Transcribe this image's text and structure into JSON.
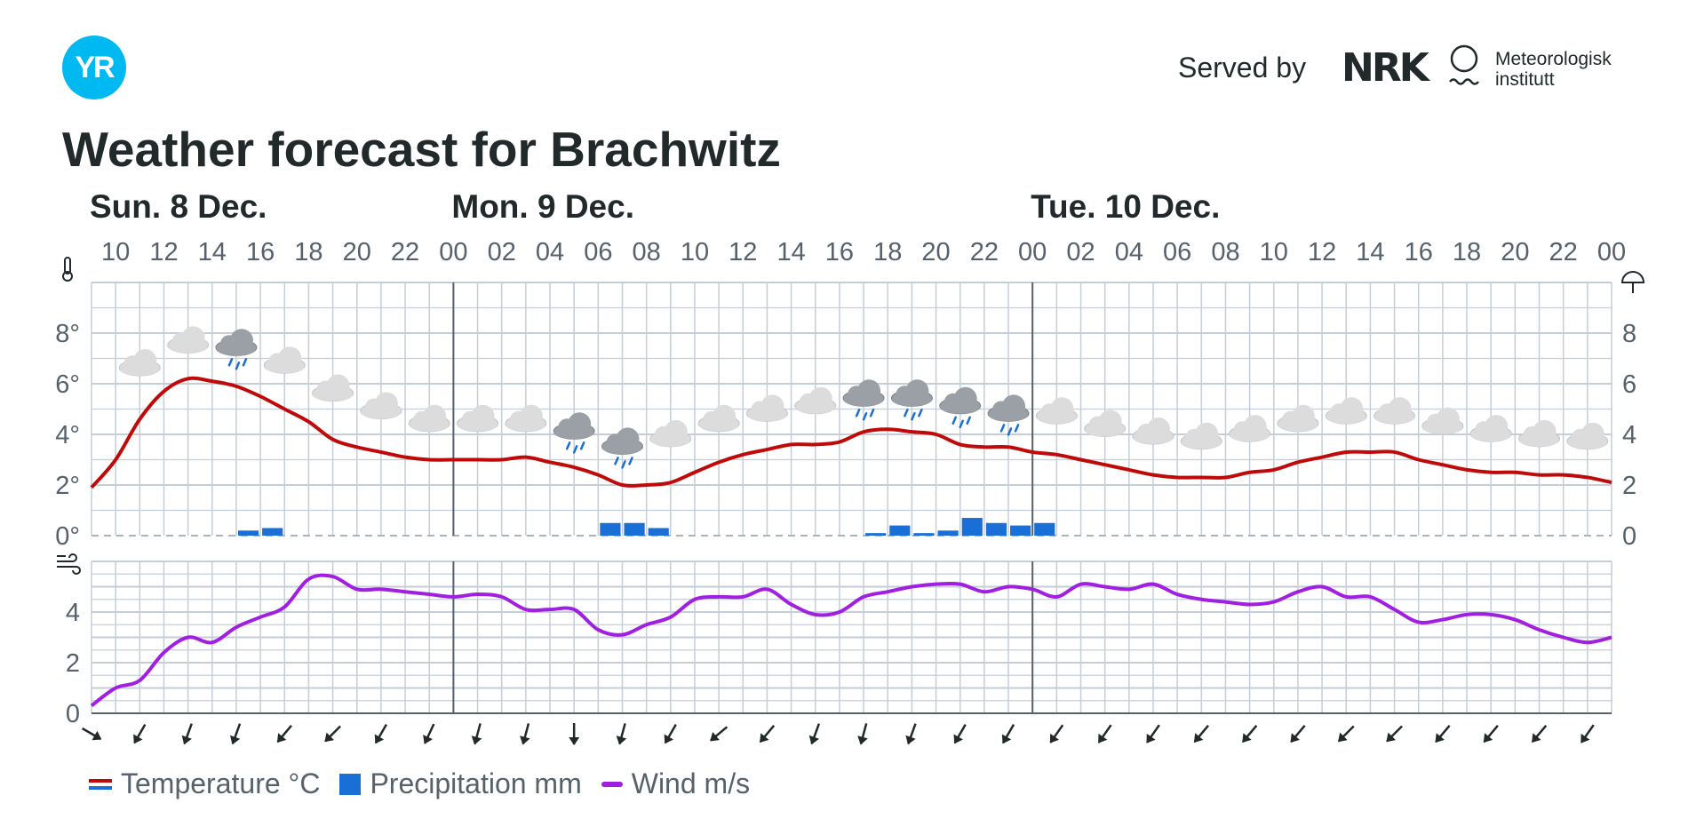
{
  "header": {
    "served_by": "Served by",
    "nrk_logo_text": "NRK",
    "met_line1": "Meteorologisk",
    "met_line2": "institutt",
    "logo_text": "YR"
  },
  "title": "Weather forecast for Brachwitz",
  "days": [
    {
      "label": "Sun. 8 Dec.",
      "hour": 9
    },
    {
      "label": "Mon. 9 Dec.",
      "hour": 24
    },
    {
      "label": "Tue. 10 Dec.",
      "hour": 48
    }
  ],
  "legend": {
    "temperature": "Temperature °C",
    "precipitation": "Precipitation mm",
    "wind": "Wind m/s"
  },
  "colors": {
    "temperature": "#c00a0a",
    "precipitation": "#1a6fd6",
    "wind": "#a01fe0",
    "grid": "#c5ced8",
    "day_line": "#56616c"
  },
  "chart_data": {
    "type": "line",
    "x_unit": "hours from Sun. 8 Dec. 00:00",
    "xlim": [
      9,
      72
    ],
    "x_tick_labels": [
      "10",
      "12",
      "14",
      "16",
      "18",
      "20",
      "22",
      "00",
      "02",
      "04",
      "06",
      "08",
      "10",
      "12",
      "14",
      "16",
      "18",
      "20",
      "22",
      "00",
      "02",
      "04",
      "06",
      "08",
      "10",
      "12",
      "14",
      "16",
      "18",
      "20",
      "22",
      "00"
    ],
    "x_tick_hours": [
      10,
      12,
      14,
      16,
      18,
      20,
      22,
      24,
      26,
      28,
      30,
      32,
      34,
      36,
      38,
      40,
      42,
      44,
      46,
      48,
      50,
      52,
      54,
      56,
      58,
      60,
      62,
      64,
      66,
      68,
      70,
      72
    ],
    "temperature": {
      "ylim": [
        0,
        10
      ],
      "y_tick_labels": [
        "0°",
        "2°",
        "4°",
        "6°",
        "8°"
      ],
      "y_tick_values": [
        0,
        2,
        4,
        6,
        8
      ],
      "right_tick_labels": [
        "0",
        "2",
        "4",
        "6",
        "8"
      ],
      "x": [
        9,
        10,
        11,
        12,
        13,
        14,
        15,
        16,
        17,
        18,
        19,
        20,
        21,
        22,
        23,
        24,
        25,
        26,
        27,
        28,
        29,
        30,
        31,
        32,
        33,
        34,
        35,
        36,
        37,
        38,
        39,
        40,
        41,
        42,
        43,
        44,
        45,
        46,
        47,
        48,
        49,
        50,
        51,
        52,
        53,
        54,
        55,
        56,
        57,
        58,
        59,
        60,
        61,
        62,
        63,
        64,
        65,
        66,
        67,
        68,
        69,
        70,
        71,
        72
      ],
      "values": [
        1.9,
        3.0,
        4.6,
        5.7,
        6.2,
        6.1,
        5.9,
        5.5,
        5.0,
        4.5,
        3.8,
        3.5,
        3.3,
        3.1,
        3.0,
        3.0,
        3.0,
        3.0,
        3.1,
        2.9,
        2.7,
        2.4,
        2.0,
        2.0,
        2.1,
        2.5,
        2.9,
        3.2,
        3.4,
        3.6,
        3.6,
        3.7,
        4.1,
        4.2,
        4.1,
        4.0,
        3.6,
        3.5,
        3.5,
        3.3,
        3.2,
        3.0,
        2.8,
        2.6,
        2.4,
        2.3,
        2.3,
        2.3,
        2.5,
        2.6,
        2.9,
        3.1,
        3.3,
        3.3,
        3.3,
        3.0,
        2.8,
        2.6,
        2.5,
        2.5,
        2.4,
        2.4,
        2.3,
        2.1
      ]
    },
    "precipitation": {
      "x": [
        15,
        16,
        30,
        31,
        32,
        41,
        42,
        43,
        44,
        45,
        46,
        47,
        48
      ],
      "values": [
        0.2,
        0.3,
        0.5,
        0.5,
        0.3,
        0.1,
        0.4,
        0.1,
        0.2,
        0.7,
        0.5,
        0.4,
        0.5
      ]
    },
    "wind": {
      "ylim": [
        0,
        6
      ],
      "y_tick_labels": [
        "0",
        "2",
        "4"
      ],
      "y_tick_values": [
        0,
        2,
        4
      ],
      "x": [
        9,
        10,
        11,
        12,
        13,
        14,
        15,
        16,
        17,
        18,
        19,
        20,
        21,
        22,
        23,
        24,
        25,
        26,
        27,
        28,
        29,
        30,
        31,
        32,
        33,
        34,
        35,
        36,
        37,
        38,
        39,
        40,
        41,
        42,
        43,
        44,
        45,
        46,
        47,
        48,
        49,
        50,
        51,
        52,
        53,
        54,
        55,
        56,
        57,
        58,
        59,
        60,
        61,
        62,
        63,
        64,
        65,
        66,
        67,
        68,
        69,
        70,
        71,
        72
      ],
      "values": [
        0.3,
        1.0,
        1.3,
        2.4,
        3.0,
        2.8,
        3.4,
        3.8,
        4.2,
        5.3,
        5.4,
        4.9,
        4.9,
        4.8,
        4.7,
        4.6,
        4.7,
        4.6,
        4.1,
        4.1,
        4.1,
        3.3,
        3.1,
        3.5,
        3.8,
        4.5,
        4.6,
        4.6,
        4.9,
        4.3,
        3.9,
        4.0,
        4.6,
        4.8,
        5.0,
        5.1,
        5.1,
        4.8,
        5.0,
        4.9,
        4.6,
        5.1,
        5.0,
        4.9,
        5.1,
        4.7,
        4.5,
        4.4,
        4.3,
        4.4,
        4.8,
        5.0,
        4.6,
        4.6,
        4.1,
        3.6,
        3.7,
        3.9,
        3.9,
        3.7,
        3.3,
        3.0,
        2.8,
        3.0
      ]
    },
    "weather_icons": [
      {
        "hour": 11,
        "temp": 6.7,
        "icon": "cloud-icon"
      },
      {
        "hour": 13,
        "temp": 7.6,
        "icon": "cloud-icon"
      },
      {
        "hour": 15,
        "temp": 7.5,
        "icon": "rain-cloud-icon"
      },
      {
        "hour": 17,
        "temp": 6.8,
        "icon": "cloud-icon"
      },
      {
        "hour": 19,
        "temp": 5.7,
        "icon": "cloud-icon"
      },
      {
        "hour": 21,
        "temp": 5.0,
        "icon": "cloud-icon"
      },
      {
        "hour": 23,
        "temp": 4.5,
        "icon": "cloud-icon"
      },
      {
        "hour": 25,
        "temp": 4.5,
        "icon": "cloud-icon"
      },
      {
        "hour": 27,
        "temp": 4.5,
        "icon": "cloud-icon"
      },
      {
        "hour": 29,
        "temp": 4.2,
        "icon": "rain-cloud-icon"
      },
      {
        "hour": 31,
        "temp": 3.6,
        "icon": "rain-cloud-icon"
      },
      {
        "hour": 33,
        "temp": 3.9,
        "icon": "cloud-icon"
      },
      {
        "hour": 35,
        "temp": 4.5,
        "icon": "cloud-icon"
      },
      {
        "hour": 37,
        "temp": 4.9,
        "icon": "cloud-icon"
      },
      {
        "hour": 39,
        "temp": 5.2,
        "icon": "cloud-icon"
      },
      {
        "hour": 41,
        "temp": 5.5,
        "icon": "rain-cloud-icon"
      },
      {
        "hour": 43,
        "temp": 5.5,
        "icon": "rain-cloud-icon"
      },
      {
        "hour": 45,
        "temp": 5.2,
        "icon": "rain-cloud-icon"
      },
      {
        "hour": 47,
        "temp": 4.9,
        "icon": "rain-cloud-icon"
      },
      {
        "hour": 49,
        "temp": 4.8,
        "icon": "cloud-icon"
      },
      {
        "hour": 51,
        "temp": 4.3,
        "icon": "cloud-icon"
      },
      {
        "hour": 53,
        "temp": 4.0,
        "icon": "cloud-icon"
      },
      {
        "hour": 55,
        "temp": 3.8,
        "icon": "cloud-icon"
      },
      {
        "hour": 57,
        "temp": 4.1,
        "icon": "cloud-icon"
      },
      {
        "hour": 59,
        "temp": 4.5,
        "icon": "cloud-icon"
      },
      {
        "hour": 61,
        "temp": 4.8,
        "icon": "cloud-icon"
      },
      {
        "hour": 63,
        "temp": 4.8,
        "icon": "cloud-icon"
      },
      {
        "hour": 65,
        "temp": 4.4,
        "icon": "cloud-icon"
      },
      {
        "hour": 67,
        "temp": 4.1,
        "icon": "cloud-icon"
      },
      {
        "hour": 69,
        "temp": 3.9,
        "icon": "cloud-icon"
      },
      {
        "hour": 71,
        "temp": 3.8,
        "icon": "cloud-icon"
      }
    ],
    "wind_direction_arrows": {
      "hours": [
        9,
        11,
        13,
        15,
        17,
        19,
        21,
        23,
        25,
        27,
        29,
        31,
        33,
        35,
        37,
        39,
        41,
        43,
        45,
        47,
        49,
        51,
        53,
        55,
        57,
        59,
        61,
        63,
        65,
        67,
        69,
        71
      ],
      "rotation_deg": [
        -60,
        30,
        20,
        20,
        40,
        45,
        30,
        25,
        15,
        15,
        0,
        15,
        30,
        50,
        40,
        20,
        15,
        20,
        30,
        30,
        35,
        35,
        35,
        40,
        40,
        40,
        45,
        45,
        40,
        40,
        40,
        35
      ]
    }
  }
}
